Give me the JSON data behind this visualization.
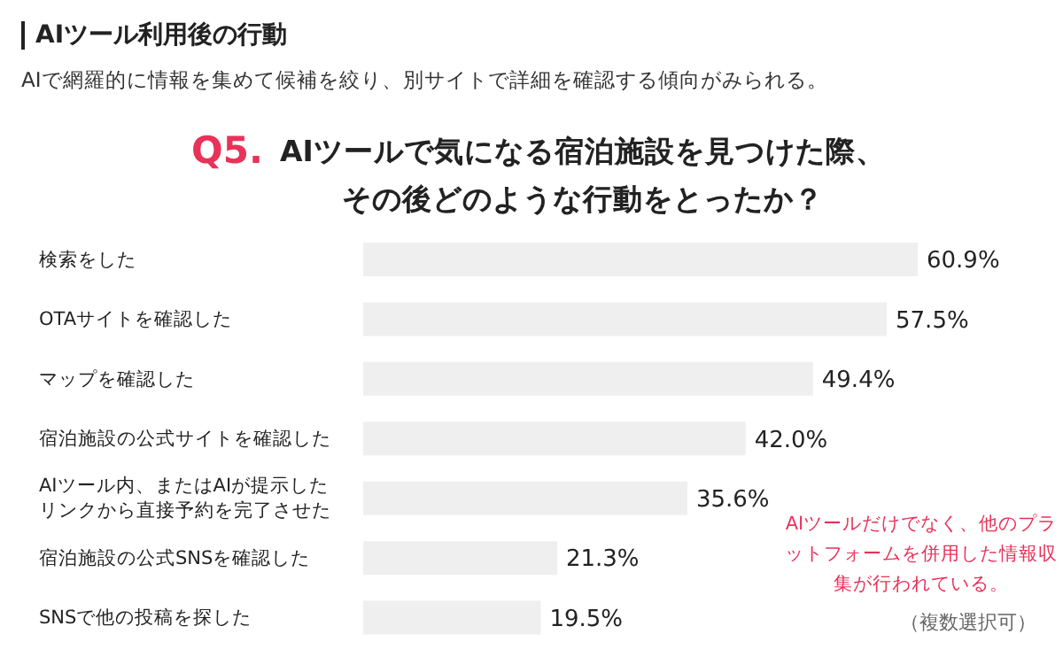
{
  "chart_data": {
    "type": "bar",
    "orientation": "horizontal",
    "title": "AIツール利用後の行動",
    "subtitle": "AIで網羅的に情報を集めて候補を絞り、別サイトで詳細を確認する傾向がみられる。",
    "categories": [
      "検索をした",
      "OTAサイトを確認した",
      "マップを確認した",
      "宿泊施設の公式サイトを確認した",
      "AIツール内、またはAIが提示したリンクから直接予約を完了させた",
      "宿泊施設の公式SNSを確認した",
      "SNSで他の投稿を探した"
    ],
    "values": [
      60.9,
      57.5,
      49.4,
      42.0,
      35.6,
      21.3,
      19.5
    ],
    "value_labels": [
      "60.9%",
      "57.5%",
      "49.4%",
      "42.0%",
      "35.6%",
      "21.3%",
      "19.5%"
    ],
    "color": "#efefef",
    "annotations": [
      "Q5.",
      "AIツールで気になる宿泊施設を見つけた際、その後どのような行動をとったか？",
      "AIツールだけでなく、他のプラットフォームを併用した情報収集が行われている。",
      "（複数選択可）"
    ],
    "grid": false,
    "legend": false
  }
}
